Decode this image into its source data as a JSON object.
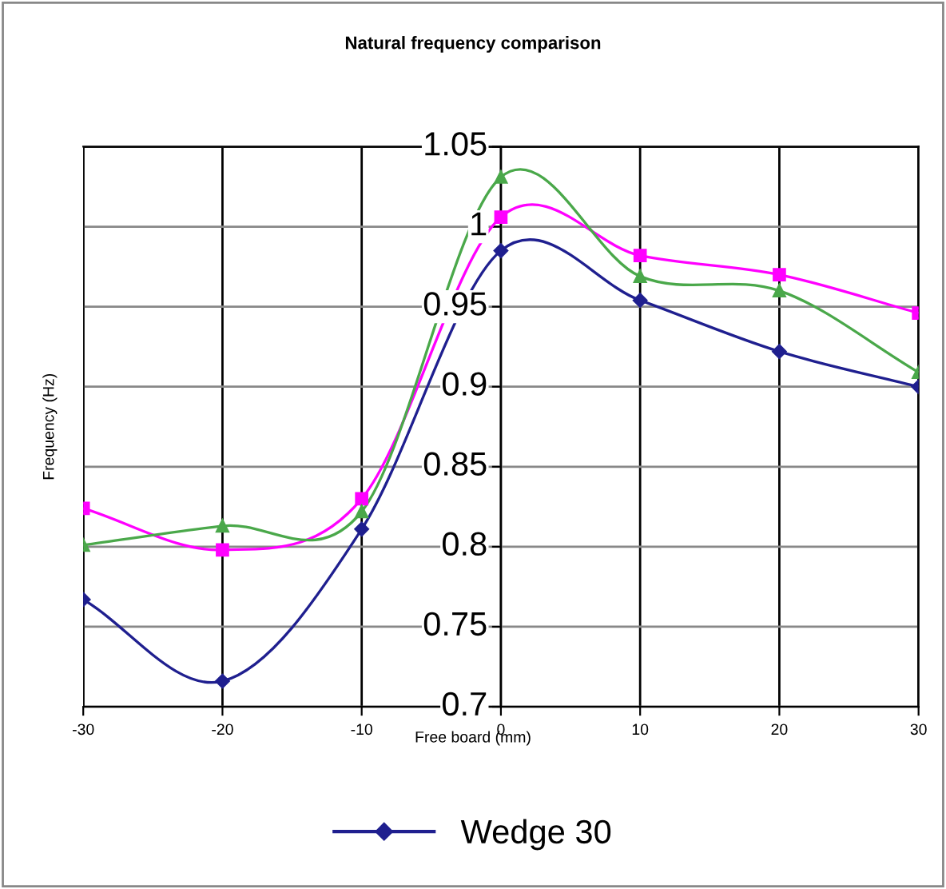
{
  "chart_data": {
    "type": "line",
    "title": "Natural frequency comparison",
    "xlabel": "Free board (mm)",
    "ylabel": "Frequency (Hz)",
    "x": [
      -30,
      -20,
      -10,
      0,
      10,
      20,
      30
    ],
    "series": [
      {
        "name": "Wedge 30",
        "color": "#1f1f8f",
        "marker": "diamond",
        "values": [
          0.767,
          0.716,
          0.811,
          0.985,
          0.954,
          0.922,
          0.9
        ]
      },
      {
        "color": "#ff00ff",
        "marker": "square",
        "values": [
          0.824,
          0.798,
          0.83,
          1.006,
          0.982,
          0.97,
          0.946
        ]
      },
      {
        "color": "#4aa84a",
        "marker": "triangle",
        "values": [
          0.801,
          0.813,
          0.822,
          1.031,
          0.969,
          0.96,
          0.909
        ]
      }
    ],
    "xlim": [
      -30,
      30
    ],
    "xticks": [
      -30,
      -20,
      -10,
      0,
      10,
      20,
      30
    ],
    "ylim": [
      0.7,
      1.05
    ],
    "yticks": [
      0.7,
      0.75,
      0.8,
      0.85,
      0.9,
      0.95,
      1,
      1.05
    ],
    "grid": true,
    "legend": "bottom",
    "line_style": "solid"
  }
}
